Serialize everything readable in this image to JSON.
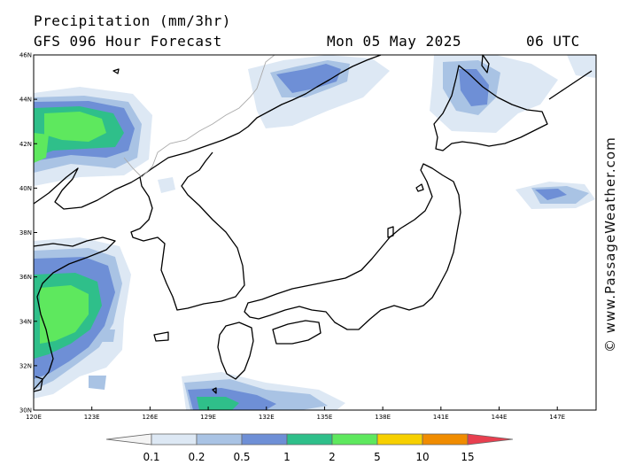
{
  "header": {
    "title": "Precipitation (mm/3hr)",
    "model_line": "GFS 096 Hour Forecast",
    "date": "Mon 05 May 2025",
    "time": "06 UTC"
  },
  "watermark": "© www.PassageWeather.com",
  "map": {
    "lat_labels": [
      "46N",
      "44N",
      "42N",
      "40N",
      "38N",
      "36N",
      "34N",
      "32N",
      "30N"
    ],
    "lon_labels": [
      "120E",
      "123E",
      "126E",
      "129E",
      "132E",
      "135E",
      "138E",
      "141E",
      "144E",
      "147E"
    ],
    "lat_values": [
      46,
      44,
      42,
      40,
      38,
      36,
      34,
      32,
      30
    ],
    "lon_values": [
      120,
      123,
      126,
      129,
      132,
      135,
      138,
      141,
      144,
      147
    ],
    "extent": {
      "lon": [
        120,
        149
      ],
      "lat": [
        30,
        46
      ]
    }
  },
  "legend": {
    "labels": [
      "0.1",
      "0.2",
      "0.5",
      "1",
      "2",
      "5",
      "10",
      "15"
    ],
    "colors": [
      "#f4f4f4",
      "#dde8f4",
      "#a9c3e4",
      "#6e8fd6",
      "#2fbf8a",
      "#5ee85e",
      "#f7d000",
      "#f08c00",
      "#e83f4f"
    ]
  },
  "colors": {
    "light_blue": "#dde8f4",
    "mid_blue": "#a9c3e4",
    "blue": "#6e8fd6",
    "teal": "#2fbf8a",
    "green": "#5ee85e"
  }
}
